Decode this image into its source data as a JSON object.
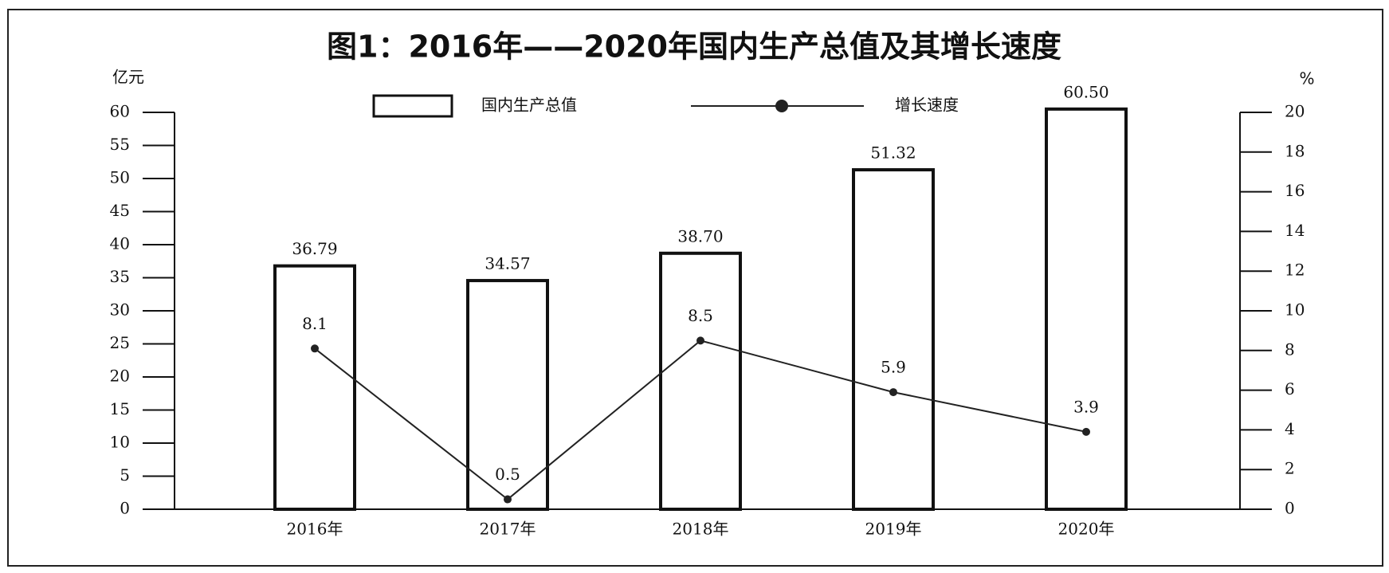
{
  "chart_data": {
    "type": "bar-line",
    "title": "图1：2016年——2020年国内生产总值及其增长速度",
    "y_label": "亿元",
    "y2_label": "%",
    "categories": [
      "2016年",
      "2017年",
      "2018年",
      "2019年",
      "2020年"
    ],
    "series": [
      {
        "name": "国内生产总值",
        "type": "bar",
        "color": "#ffffff",
        "axis": "y",
        "values": [
          36.79,
          34.57,
          38.7,
          51.32,
          60.5
        ],
        "value_labels": [
          "36.79",
          "34.57",
          "38.70",
          "51.32",
          "60.50"
        ]
      },
      {
        "name": "增长速度",
        "type": "line",
        "color": "#222222",
        "axis": "y2",
        "values": [
          8.1,
          0.5,
          8.5,
          5.9,
          3.9
        ]
      }
    ],
    "ylim": [
      0,
      60
    ],
    "yticks": [
      0,
      5,
      10,
      15,
      20,
      25,
      30,
      35,
      40,
      45,
      50,
      55,
      60
    ],
    "y2lim": [
      0,
      20
    ],
    "y2ticks": [
      0,
      2,
      4,
      6,
      8,
      10,
      12,
      14,
      16,
      18,
      20
    ]
  }
}
